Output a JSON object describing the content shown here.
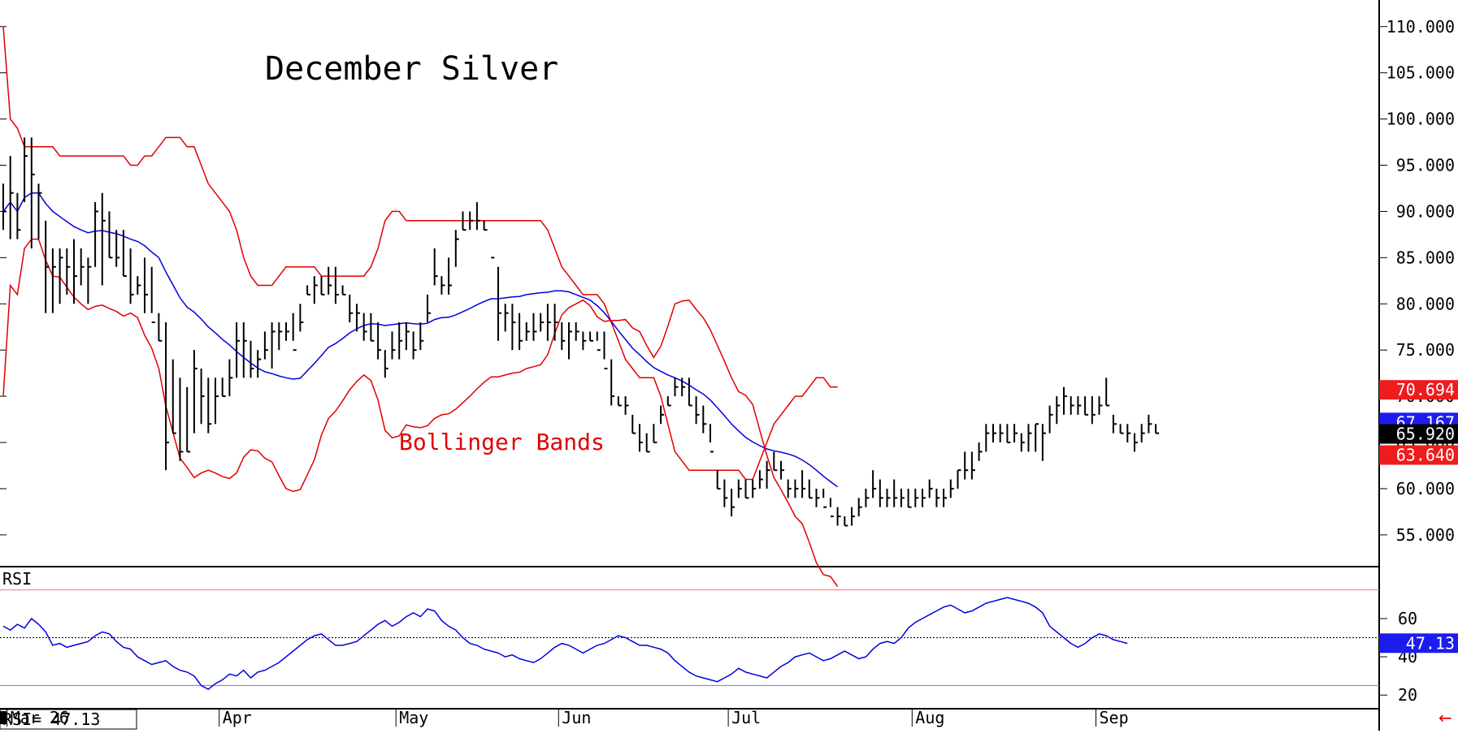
{
  "chart_data": [
    {
      "type": "ohlc",
      "title": "December Silver",
      "annotation": "Bollinger Bands",
      "y_range": [
        52,
        112
      ],
      "y_ticks": [
        "110.000",
        "105.000",
        "100.000",
        "95.000",
        "90.000",
        "85.000",
        "80.000",
        "75.000",
        "70.000",
        "65.000",
        "60.000",
        "55.000"
      ],
      "y_tick_values": [
        110,
        105,
        100,
        95,
        90,
        85,
        80,
        75,
        70,
        65,
        60,
        55
      ],
      "x_labels": [
        "Mar 26",
        "Apr",
        "May",
        "Jun",
        "Jul",
        "Aug",
        "Sep"
      ],
      "x_label_index": [
        1,
        31,
        56,
        79,
        103,
        129,
        155
      ],
      "badges": [
        {
          "label": "70.694",
          "value": 70.694,
          "color": "#ee1c1c"
        },
        {
          "label": "67.167",
          "value": 67.167,
          "color": "#1c1cee"
        },
        {
          "label": "65.920",
          "value": 65.92,
          "color": "#000000"
        },
        {
          "label": "63.640",
          "value": 63.64,
          "color": "#ee1c1c"
        }
      ],
      "colors": {
        "price_bars": "#000000",
        "upper_band": "#e00000",
        "middle_band": "#0000e0",
        "lower_band": "#e00000"
      },
      "bars": [
        [
          88,
          93,
          90
        ],
        [
          87,
          96,
          92
        ],
        [
          87,
          92,
          88
        ],
        [
          91,
          98,
          96
        ],
        [
          86,
          98,
          94
        ],
        [
          87,
          93,
          92
        ],
        [
          79,
          89,
          84
        ],
        [
          79,
          86,
          84
        ],
        [
          80,
          86,
          85
        ],
        [
          81,
          86,
          84
        ],
        [
          80,
          87,
          83
        ],
        [
          82,
          86,
          84
        ],
        [
          80,
          85,
          84
        ],
        [
          84,
          91,
          90
        ],
        [
          82,
          92,
          89
        ],
        [
          85,
          90,
          85
        ],
        [
          84,
          88,
          85
        ],
        [
          83,
          88,
          83
        ],
        [
          80,
          86,
          81
        ],
        [
          81,
          83,
          82
        ],
        [
          79,
          85,
          81
        ],
        [
          79,
          84,
          78
        ],
        [
          76,
          79,
          76
        ],
        [
          62,
          78,
          65
        ],
        [
          66,
          74,
          66
        ],
        [
          63,
          72,
          64
        ],
        [
          64,
          71,
          64
        ],
        [
          66,
          75,
          73
        ],
        [
          67,
          73,
          70
        ],
        [
          66,
          72,
          67
        ],
        [
          67,
          72,
          70
        ],
        [
          70,
          72,
          70
        ],
        [
          70,
          74,
          72
        ],
        [
          72,
          78,
          76
        ],
        [
          72,
          78,
          76
        ],
        [
          72,
          76,
          73
        ],
        [
          72,
          75,
          74
        ],
        [
          74,
          77,
          75
        ],
        [
          73,
          78,
          77
        ],
        [
          75,
          78,
          77
        ],
        [
          76,
          78,
          77
        ],
        [
          76,
          79,
          75
        ],
        [
          77,
          80,
          78
        ],
        [
          81,
          82,
          81
        ],
        [
          80,
          83,
          82
        ],
        [
          81,
          83,
          81
        ],
        [
          81,
          84,
          82
        ],
        [
          80,
          84,
          81
        ],
        [
          81,
          82,
          81
        ],
        [
          78,
          81,
          79
        ],
        [
          77,
          80,
          79
        ],
        [
          76,
          79,
          77
        ],
        [
          76,
          79,
          76
        ],
        [
          74,
          78,
          75
        ],
        [
          72,
          75,
          73
        ],
        [
          74,
          77,
          75
        ],
        [
          74,
          78,
          76
        ],
        [
          75,
          78,
          77
        ],
        [
          74,
          77,
          75
        ],
        [
          75,
          78,
          76
        ],
        [
          78,
          81,
          79
        ],
        [
          82,
          86,
          83
        ],
        [
          81,
          83,
          82
        ],
        [
          81,
          85,
          82
        ],
        [
          84,
          88,
          87
        ],
        [
          88,
          90,
          88
        ],
        [
          88,
          90,
          89
        ],
        [
          88,
          91,
          89
        ],
        [
          88,
          89,
          88
        ],
        [
          85,
          85,
          85
        ],
        [
          76,
          84,
          79
        ],
        [
          77,
          80,
          79
        ],
        [
          75,
          80,
          78
        ],
        [
          75,
          79,
          76
        ],
        [
          76,
          78,
          77
        ],
        [
          76,
          79,
          77
        ],
        [
          77,
          79,
          78
        ],
        [
          76,
          80,
          78
        ],
        [
          76,
          80,
          78
        ],
        [
          75,
          78,
          76
        ],
        [
          74,
          78,
          77
        ],
        [
          76,
          78,
          77
        ],
        [
          75,
          77,
          76
        ],
        [
          76,
          77,
          76
        ],
        [
          76,
          77,
          75
        ],
        [
          74,
          77,
          73
        ],
        [
          69,
          74,
          70
        ],
        [
          69,
          70,
          69
        ],
        [
          68,
          70,
          69
        ],
        [
          66,
          68,
          66
        ],
        [
          64,
          67,
          65
        ],
        [
          64,
          66,
          64
        ],
        [
          65,
          67,
          65
        ],
        [
          67,
          69,
          68
        ],
        [
          69,
          70,
          69
        ],
        [
          70,
          72,
          71
        ],
        [
          70,
          72,
          71
        ],
        [
          69,
          72,
          69
        ],
        [
          67,
          70,
          68
        ],
        [
          66,
          69,
          67
        ],
        [
          65,
          67,
          64
        ],
        [
          60,
          62,
          60
        ],
        [
          58,
          61,
          59
        ],
        [
          57,
          60,
          58
        ],
        [
          59,
          61,
          60
        ],
        [
          59,
          61,
          59
        ],
        [
          59,
          61,
          60
        ],
        [
          60,
          62,
          61
        ],
        [
          60,
          63,
          62
        ],
        [
          62,
          64,
          62
        ],
        [
          61,
          63,
          62
        ],
        [
          59,
          61,
          60
        ],
        [
          59,
          61,
          60
        ],
        [
          59,
          62,
          60
        ],
        [
          59,
          61,
          59
        ],
        [
          58,
          60,
          59
        ],
        [
          59,
          60,
          58
        ],
        [
          58,
          59,
          57
        ],
        [
          56,
          58,
          57
        ],
        [
          56,
          57,
          56
        ],
        [
          56,
          58,
          57
        ],
        [
          57,
          59,
          58
        ],
        [
          58,
          60,
          59
        ],
        [
          59,
          62,
          60
        ],
        [
          58,
          61,
          59
        ],
        [
          58,
          60,
          59
        ],
        [
          58,
          61,
          59
        ],
        [
          58,
          60,
          59
        ],
        [
          58,
          60,
          58
        ],
        [
          58,
          60,
          59
        ],
        [
          58,
          60,
          59
        ],
        [
          59,
          61,
          60
        ],
        [
          58,
          60,
          59
        ],
        [
          58,
          60,
          59
        ],
        [
          59,
          61,
          60
        ],
        [
          60,
          62,
          62
        ],
        [
          61,
          64,
          62
        ],
        [
          61,
          64,
          62
        ],
        [
          63,
          65,
          64
        ],
        [
          64,
          67,
          66
        ],
        [
          65,
          67,
          66
        ],
        [
          65,
          67,
          66
        ],
        [
          65,
          67,
          65
        ],
        [
          65,
          67,
          66
        ],
        [
          64,
          66,
          65
        ],
        [
          64,
          67,
          66
        ],
        [
          64,
          67,
          67
        ],
        [
          63,
          67,
          66
        ],
        [
          66,
          69,
          68
        ],
        [
          67,
          70,
          69
        ],
        [
          68,
          71,
          70
        ],
        [
          68,
          70,
          69
        ],
        [
          68,
          70,
          69
        ],
        [
          68,
          70,
          68
        ],
        [
          67,
          70,
          68
        ],
        [
          68,
          70,
          69
        ],
        [
          69,
          72,
          69
        ],
        [
          66,
          68,
          67
        ],
        [
          66,
          67,
          66
        ],
        [
          65,
          67,
          66
        ],
        [
          64,
          66,
          65
        ],
        [
          65,
          67,
          66
        ],
        [
          66,
          68,
          67
        ],
        [
          66,
          67,
          66
        ]
      ],
      "upper_band": [
        110,
        100,
        99,
        97,
        97,
        97,
        97,
        97,
        96,
        96,
        96,
        96,
        96,
        96,
        96,
        96,
        96,
        96,
        95,
        95,
        96,
        96,
        97,
        98,
        98,
        98,
        97,
        97,
        95,
        93,
        92,
        91,
        90,
        88,
        85,
        83,
        82,
        82,
        82,
        83,
        84,
        84,
        84,
        84,
        84,
        83,
        83,
        83,
        83,
        83,
        83,
        83,
        84,
        86,
        89,
        90,
        90,
        89,
        89,
        89,
        89,
        89,
        89,
        89,
        89,
        89,
        89,
        89,
        89,
        89,
        89,
        89,
        89,
        89,
        89,
        89,
        89,
        88,
        86,
        84,
        83,
        82,
        81,
        81,
        81,
        80,
        78,
        76,
        74,
        73,
        72,
        72,
        72,
        70,
        67,
        64,
        63,
        62,
        62,
        62,
        62,
        62,
        62,
        62,
        62,
        61,
        61,
        63,
        65,
        67,
        68,
        69,
        70,
        70,
        71,
        72,
        72,
        71,
        71
      ]
    },
    {
      "type": "line",
      "label": "RSI",
      "readout": "RSI= 47.13",
      "y_range": [
        15,
        85
      ],
      "y_ticks": [
        "60",
        "40",
        "20"
      ],
      "y_tick_values": [
        60,
        40,
        20
      ],
      "reference_lines": [
        {
          "value": 75,
          "color": "#ff7070"
        },
        {
          "value": 50,
          "color": "#000000"
        },
        {
          "value": 25,
          "color": "#7070ff"
        }
      ],
      "badge": {
        "label": "47.13",
        "value": 47.13,
        "color": "#1c1cee"
      },
      "line_color": "#0000e0",
      "values": [
        56,
        54,
        57,
        55,
        60,
        57,
        53,
        46,
        47,
        45,
        46,
        47,
        48,
        51,
        53,
        52,
        48,
        45,
        44,
        40,
        38,
        36,
        37,
        38,
        35,
        33,
        32,
        30,
        25,
        23,
        26,
        28,
        31,
        30,
        33,
        29,
        32,
        33,
        35,
        37,
        40,
        43,
        46,
        49,
        51,
        52,
        49,
        46,
        46,
        47,
        48,
        51,
        54,
        57,
        59,
        56,
        58,
        61,
        63,
        61,
        65,
        64,
        59,
        56,
        54,
        50,
        47,
        46,
        44,
        43,
        42,
        40,
        41,
        39,
        38,
        37,
        39,
        42,
        45,
        47,
        46,
        44,
        42,
        44,
        46,
        47,
        49,
        51,
        50,
        48,
        46,
        46,
        45,
        44,
        42,
        38,
        35,
        32,
        30,
        29,
        28,
        27,
        29,
        31,
        34,
        32,
        31,
        30,
        29,
        32,
        35,
        37,
        40,
        41,
        42,
        40,
        38,
        39,
        41,
        43,
        41,
        39,
        40,
        44,
        47,
        48,
        47,
        50,
        55,
        58,
        60,
        62,
        64,
        66,
        67,
        65,
        63,
        64,
        66,
        68,
        69,
        70,
        71,
        70,
        69,
        68,
        66,
        63,
        56,
        53,
        50,
        47,
        45,
        47,
        50,
        52,
        51,
        49,
        48,
        47
      ]
    }
  ]
}
